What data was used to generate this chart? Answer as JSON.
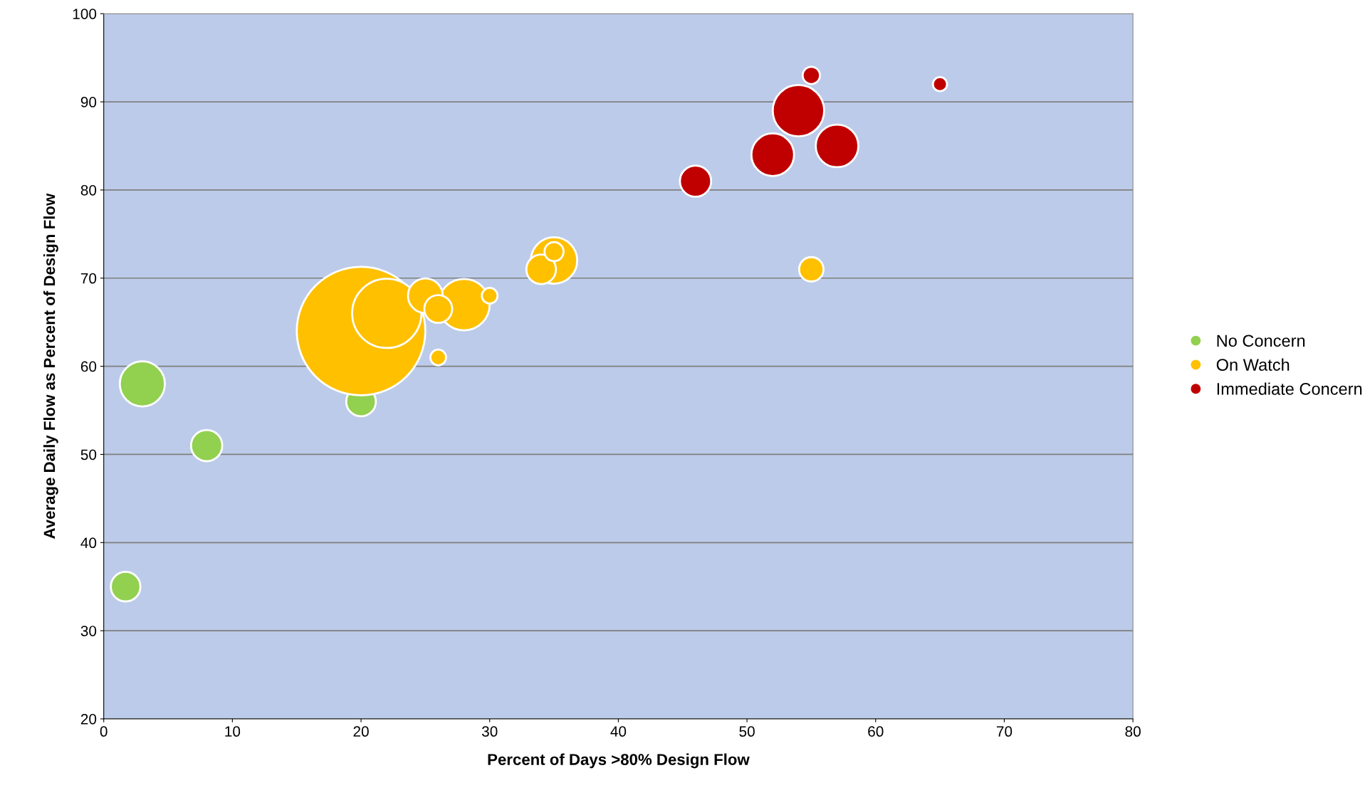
{
  "chart_data": {
    "type": "bubble",
    "xlabel": "Percent of Days >80% Design Flow",
    "ylabel": "Average Daily Flow as Percent of Design Flow",
    "xlim": [
      0,
      80
    ],
    "xticks": [
      0,
      10,
      20,
      30,
      40,
      50,
      60,
      70,
      80
    ],
    "ylim": [
      20,
      100
    ],
    "yticks": [
      20,
      30,
      40,
      50,
      60,
      70,
      80,
      90,
      100
    ],
    "grid": "y",
    "legend": "right",
    "series": [
      {
        "name": "No Concern",
        "color": "#92d050",
        "x": [
          1.7,
          3,
          8,
          20
        ],
        "values": [
          35,
          58,
          51,
          56
        ],
        "sizes": [
          0.053,
          0.123,
          0.059,
          0.053
        ]
      },
      {
        "name": "On Watch",
        "color": "#ffc000",
        "x": [
          20,
          22,
          28,
          35,
          25,
          34,
          26,
          55,
          35,
          30,
          26
        ],
        "values": [
          64,
          66,
          67,
          72,
          68,
          71,
          66.5,
          71,
          73,
          68,
          61
        ],
        "sizes": [
          1,
          0.29,
          0.16,
          0.13,
          0.073,
          0.053,
          0.047,
          0.036,
          0.022,
          0.015,
          0.015
        ]
      },
      {
        "name": "Immediate Concern",
        "color": "#c00000",
        "x": [
          54,
          52,
          57,
          46,
          55,
          65
        ],
        "values": [
          89,
          84,
          85,
          81,
          93,
          92
        ],
        "sizes": [
          0.16,
          0.11,
          0.11,
          0.059,
          0.018,
          0.012
        ]
      }
    ]
  }
}
